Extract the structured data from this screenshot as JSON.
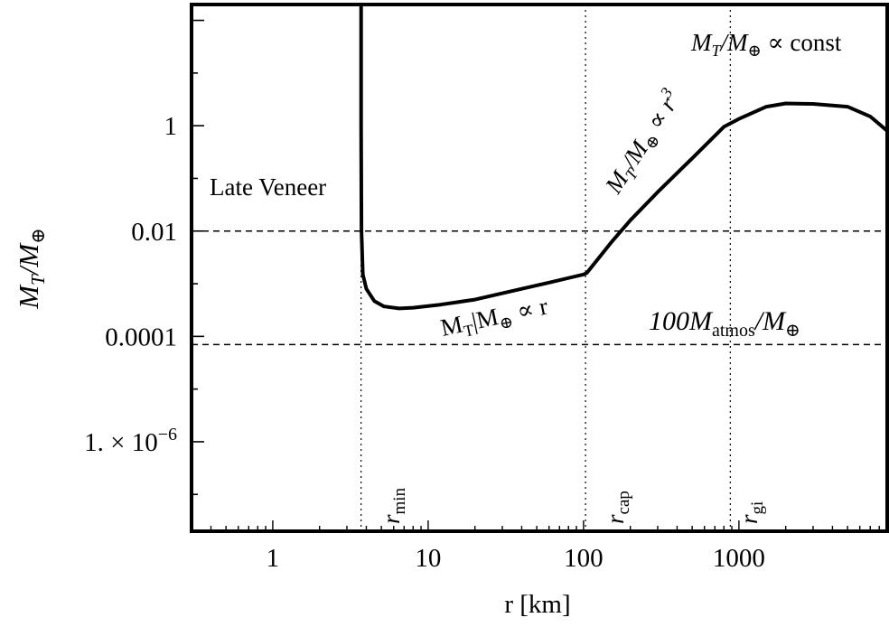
{
  "chart_data": {
    "type": "line",
    "xlabel": "r [km]",
    "ylabel": "M_T/M_⊕",
    "x_scale": "log",
    "y_scale": "log",
    "xlim": [
      0.3,
      9000
    ],
    "ylim": [
      2e-08,
      200
    ],
    "x_ticks": [
      {
        "value": 1,
        "label": "1"
      },
      {
        "value": 10,
        "label": "10"
      },
      {
        "value": 100,
        "label": "100"
      },
      {
        "value": 1000,
        "label": "1000"
      }
    ],
    "y_ticks": [
      {
        "value": 1,
        "label": "1"
      },
      {
        "value": 0.01,
        "label": "0.01"
      },
      {
        "value": 0.0001,
        "label": "0.0001"
      },
      {
        "value": 1e-06,
        "label": "1. × 10⁻⁶",
        "prefix": "1. × 10",
        "exp": "−6"
      }
    ],
    "series": [
      {
        "points": [
          [
            3.7,
            200
          ],
          [
            3.7,
            1
          ],
          [
            3.72,
            0.01
          ],
          [
            3.8,
            0.0015
          ],
          [
            4.0,
            0.0008
          ],
          [
            4.5,
            0.00047
          ],
          [
            5.2,
            0.00037
          ],
          [
            6.5,
            0.00034
          ],
          [
            8,
            0.00035
          ],
          [
            12,
            0.0004
          ],
          [
            20,
            0.0005
          ],
          [
            40,
            0.0008
          ],
          [
            60,
            0.00105
          ],
          [
            100,
            0.0015
          ],
          [
            105,
            0.0016
          ],
          [
            150,
            0.006
          ],
          [
            200,
            0.016
          ],
          [
            300,
            0.055
          ],
          [
            500,
            0.24
          ],
          [
            800,
            0.95
          ],
          [
            1000,
            1.35
          ],
          [
            1500,
            2.3
          ],
          [
            2000,
            2.65
          ],
          [
            3000,
            2.6
          ],
          [
            5000,
            2.3
          ],
          [
            7000,
            1.5
          ],
          [
            9000,
            0.8
          ]
        ]
      }
    ],
    "reference_lines": {
      "horizontal": [
        0.01,
        7e-05
      ],
      "vertical": [
        3.7,
        103,
        880
      ]
    },
    "annotations": {
      "late_veneer": "Late Veneer",
      "ann_const": {
        "pre": "M",
        "sub1": "T",
        "mid": "/M",
        "sub2": "⊕",
        "post": " ∝ const"
      },
      "ann_r3": {
        "pre": "M",
        "sub1": "T",
        "mid": "/M",
        "sub2": "⊕",
        "post": " ∝ r",
        "sup": "3"
      },
      "ann_r": {
        "pre": "M",
        "sub1": "T",
        "mid": "|M",
        "sub2": "⊕",
        "post": " ∝ r"
      },
      "ann_atmos": {
        "pre": "100M",
        "sub1": "atmos",
        "mid": "/M",
        "sub2": "⊕"
      },
      "r_min": {
        "base": "r",
        "sub": "min"
      },
      "r_cap": {
        "base": "r",
        "sub": "cap"
      },
      "r_gi": {
        "base": "r",
        "sub": "gi"
      }
    },
    "grid": false,
    "legend": "none"
  }
}
